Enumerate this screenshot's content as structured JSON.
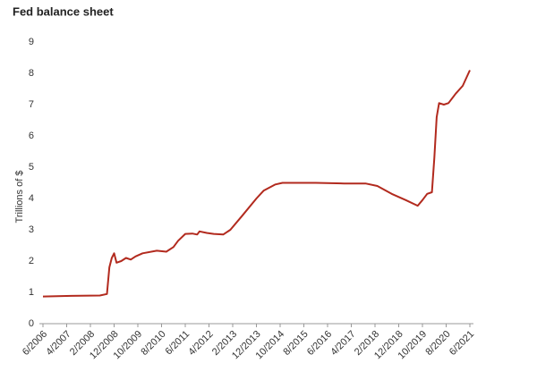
{
  "chart_data": {
    "type": "line",
    "title": "Fed balance sheet",
    "y_label": "Trillions of $",
    "x": [
      "6/2006",
      "6/2007",
      "6/2008",
      "9/2008",
      "10/2008",
      "11/2008",
      "12/2008",
      "1/2009",
      "3/2009",
      "5/2009",
      "7/2009",
      "9/2009",
      "12/2009",
      "6/2010",
      "10/2010",
      "1/2011",
      "3/2011",
      "6/2011",
      "9/2011",
      "11/2011",
      "12/2011",
      "3/2012",
      "6/2012",
      "10/2012",
      "1/2013",
      "6/2013",
      "12/2013",
      "3/2014",
      "8/2014",
      "11/2014",
      "6/2015",
      "1/2016",
      "1/2017",
      "10/2017",
      "3/2018",
      "9/2018",
      "3/2019",
      "8/2019",
      "10/2019",
      "12/2019",
      "2/2020",
      "3/2020",
      "4/2020",
      "5/2020",
      "7/2020",
      "9/2020",
      "12/2020",
      "3/2021",
      "6/2021"
    ],
    "series": [
      {
        "name": "Fed balance sheet",
        "color": "#b22a1e",
        "values": [
          0.87,
          0.89,
          0.9,
          0.95,
          1.8,
          2.1,
          2.25,
          1.95,
          2.0,
          2.1,
          2.05,
          2.15,
          2.25,
          2.33,
          2.3,
          2.45,
          2.65,
          2.87,
          2.88,
          2.85,
          2.95,
          2.9,
          2.87,
          2.85,
          3.0,
          3.45,
          4.0,
          4.25,
          4.45,
          4.5,
          4.5,
          4.5,
          4.48,
          4.48,
          4.4,
          4.15,
          3.95,
          3.77,
          3.95,
          4.15,
          4.2,
          5.3,
          6.6,
          7.05,
          7.0,
          7.05,
          7.35,
          7.6,
          8.1
        ]
      }
    ],
    "xticks": [
      "6/2006",
      "4/2007",
      "2/2008",
      "12/2008",
      "10/2009",
      "8/2010",
      "6/2011",
      "4/2012",
      "2/2013",
      "12/2013",
      "10/2014",
      "8/2015",
      "6/2016",
      "4/2017",
      "2/2018",
      "12/2018",
      "10/2019",
      "8/2020",
      "6/2021"
    ],
    "ylim": [
      0,
      9
    ],
    "yticks": [
      0,
      1,
      2,
      3,
      4,
      5,
      6,
      7,
      8,
      9
    ],
    "grid": false
  }
}
